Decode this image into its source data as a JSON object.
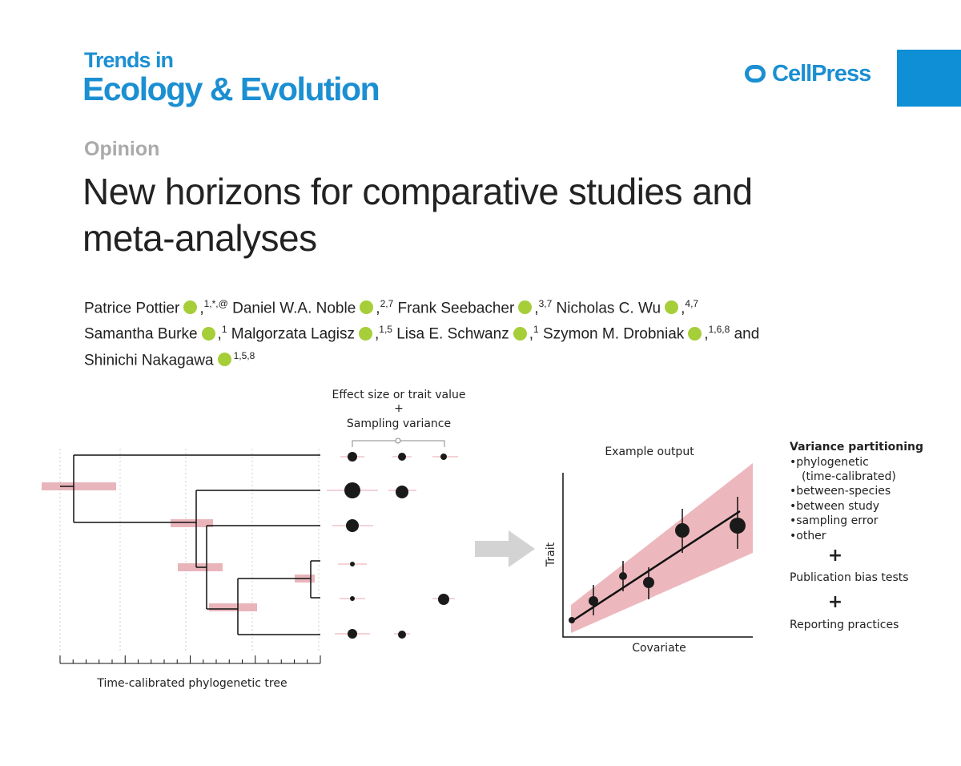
{
  "header": {
    "journal_line1": "Trends in",
    "journal_line2": "Ecology & Evolution",
    "publisher": "CellPress"
  },
  "article": {
    "type": "Opinion",
    "title_line1": "New horizons for comparative studies and",
    "title_line2": "meta-analyses"
  },
  "authors": [
    [
      {
        "name": "Patrice Pottier",
        "punct": ",",
        "affil": "1,*,@"
      },
      {
        "name": "Daniel W.A. Noble",
        "punct": ",",
        "affil": "2,7"
      },
      {
        "name": "Frank Seebacher",
        "punct": ",",
        "affil": "3,7"
      },
      {
        "name": "Nicholas C. Wu",
        "punct": ",",
        "affil": "4,7"
      }
    ],
    [
      {
        "name": "Samantha Burke",
        "punct": ",",
        "affil": "1"
      },
      {
        "name": "Malgorzata Lagisz",
        "punct": ",",
        "affil": "1,5"
      },
      {
        "name": "Lisa E. Schwanz",
        "punct": ",",
        "affil": "1"
      },
      {
        "name": "Szymon M. Drobniak",
        "punct": ",",
        "affil": "1,6,8"
      }
    ],
    [
      {
        "name": "Shinichi Nakagawa",
        "punct": "",
        "affil": "1,5,8"
      }
    ]
  ],
  "conjunction": "and",
  "figure": {
    "effect_line1": "Effect size or trait value",
    "effect_plus": "+",
    "effect_line3": "Sampling variance",
    "tree_label": "Time-calibrated phylogenetic tree",
    "example_title": "Example output",
    "y_label": "Trait",
    "x_label": "Covariate",
    "panel_title": "Variance partitioning",
    "panel_items": [
      "•phylogenetic",
      "(time-calibrated)",
      "•between-species",
      "•between study",
      "•sampling error",
      "•other"
    ],
    "plus_1": "+",
    "publication": "Publication bias tests",
    "plus_2": "+",
    "reporting": "Reporting practices"
  }
}
